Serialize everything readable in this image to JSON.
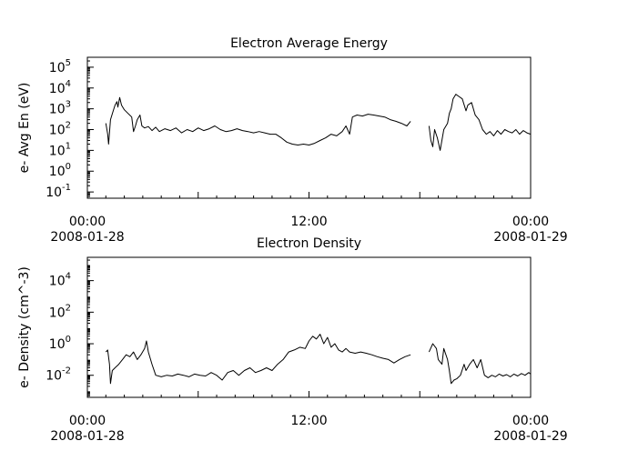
{
  "chart_data": [
    {
      "type": "line",
      "title": "Electron Average Energy",
      "ylabel": "e- Avg En (eV)",
      "yscale": "log",
      "ylim": [
        0.05,
        300000
      ],
      "y_ticks": [
        {
          "value": 0.1,
          "base": "10",
          "exp": "-1"
        },
        {
          "value": 1,
          "base": "10",
          "exp": "0"
        },
        {
          "value": 10,
          "base": "10",
          "exp": "1"
        },
        {
          "value": 100,
          "base": "10",
          "exp": "2"
        },
        {
          "value": 1000,
          "base": "10",
          "exp": "3"
        },
        {
          "value": 10000,
          "base": "10",
          "exp": "4"
        },
        {
          "value": 100000,
          "base": "10",
          "exp": "5"
        }
      ],
      "x_ticks": [
        {
          "hour": 0,
          "time": "00:00",
          "date": "2008-01-28"
        },
        {
          "hour": 12,
          "time": "12:00",
          "date": ""
        },
        {
          "hour": 24,
          "time": "00:00",
          "date": "2008-01-29"
        }
      ],
      "xlim_hours": [
        0,
        24
      ],
      "grid": false,
      "series": [
        {
          "segments": [
            [
              [
                1.0,
                200
              ],
              [
                1.1,
                60
              ],
              [
                1.15,
                20
              ],
              [
                1.25,
                300
              ],
              [
                1.4,
                800
              ],
              [
                1.5,
                1500
              ],
              [
                1.6,
                2200
              ],
              [
                1.65,
                1200
              ],
              [
                1.75,
                3500
              ],
              [
                1.85,
                1500
              ],
              [
                2.0,
                900
              ],
              [
                2.2,
                600
              ],
              [
                2.4,
                400
              ],
              [
                2.5,
                80
              ],
              [
                2.6,
                150
              ],
              [
                2.7,
                300
              ],
              [
                2.85,
                500
              ],
              [
                2.95,
                150
              ],
              [
                3.1,
                120
              ],
              [
                3.3,
                140
              ],
              [
                3.5,
                90
              ],
              [
                3.7,
                130
              ],
              [
                3.9,
                80
              ],
              [
                4.2,
                110
              ],
              [
                4.5,
                90
              ],
              [
                4.8,
                120
              ],
              [
                5.1,
                70
              ],
              [
                5.4,
                100
              ],
              [
                5.7,
                80
              ],
              [
                6.0,
                120
              ],
              [
                6.3,
                90
              ],
              [
                6.6,
                110
              ],
              [
                6.9,
                150
              ],
              [
                7.2,
                100
              ],
              [
                7.5,
                80
              ],
              [
                7.8,
                90
              ],
              [
                8.1,
                110
              ],
              [
                8.4,
                90
              ],
              [
                8.7,
                80
              ],
              [
                9.0,
                70
              ],
              [
                9.3,
                80
              ],
              [
                9.6,
                70
              ],
              [
                9.9,
                60
              ],
              [
                10.2,
                60
              ],
              [
                10.5,
                40
              ],
              [
                10.8,
                25
              ],
              [
                11.1,
                20
              ],
              [
                11.4,
                18
              ],
              [
                11.7,
                20
              ],
              [
                12.0,
                18
              ],
              [
                12.3,
                22
              ],
              [
                12.6,
                30
              ],
              [
                12.9,
                40
              ],
              [
                13.2,
                60
              ],
              [
                13.5,
                50
              ],
              [
                13.8,
                80
              ],
              [
                14.0,
                150
              ],
              [
                14.2,
                60
              ],
              [
                14.35,
                400
              ],
              [
                14.6,
                500
              ],
              [
                14.9,
                450
              ],
              [
                15.2,
                550
              ],
              [
                15.5,
                500
              ],
              [
                15.8,
                450
              ],
              [
                16.1,
                400
              ],
              [
                16.4,
                300
              ],
              [
                16.7,
                250
              ],
              [
                17.0,
                200
              ],
              [
                17.3,
                150
              ],
              [
                17.5,
                250
              ]
            ],
            [
              [
                18.5,
                150
              ],
              [
                18.6,
                30
              ],
              [
                18.7,
                15
              ],
              [
                18.8,
                100
              ],
              [
                18.95,
                40
              ],
              [
                19.1,
                10
              ],
              [
                19.3,
                100
              ],
              [
                19.5,
                200
              ],
              [
                19.6,
                600
              ],
              [
                19.7,
                1000
              ],
              [
                19.8,
                3000
              ],
              [
                19.95,
                5000
              ],
              [
                20.1,
                4000
              ],
              [
                20.3,
                3000
              ],
              [
                20.5,
                800
              ],
              [
                20.6,
                1500
              ],
              [
                20.8,
                2000
              ],
              [
                21.0,
                500
              ],
              [
                21.2,
                300
              ],
              [
                21.4,
                100
              ],
              [
                21.6,
                60
              ],
              [
                21.8,
                80
              ],
              [
                22.0,
                50
              ],
              [
                22.2,
                90
              ],
              [
                22.4,
                60
              ],
              [
                22.6,
                100
              ],
              [
                22.8,
                80
              ],
              [
                23.0,
                70
              ],
              [
                23.2,
                100
              ],
              [
                23.4,
                60
              ],
              [
                23.6,
                90
              ],
              [
                23.8,
                70
              ],
              [
                24.0,
                60
              ]
            ]
          ]
        }
      ]
    },
    {
      "type": "line",
      "title": "Electron Density",
      "ylabel": "e- Density (cm^-3)",
      "yscale": "log",
      "ylim": [
        0.0004,
        300000
      ],
      "y_ticks": [
        {
          "value": 0.01,
          "base": "10",
          "exp": "-2"
        },
        {
          "value": 1,
          "base": "10",
          "exp": "0"
        },
        {
          "value": 100,
          "base": "10",
          "exp": "2"
        },
        {
          "value": 10000,
          "base": "10",
          "exp": "4"
        }
      ],
      "x_ticks": [
        {
          "hour": 0,
          "time": "00:00",
          "date": "2008-01-28"
        },
        {
          "hour": 12,
          "time": "12:00",
          "date": ""
        },
        {
          "hour": 24,
          "time": "00:00",
          "date": "2008-01-29"
        }
      ],
      "xlim_hours": [
        0,
        24
      ],
      "grid": false,
      "series": [
        {
          "segments": [
            [
              [
                1.0,
                0.3
              ],
              [
                1.1,
                0.4
              ],
              [
                1.2,
                0.05
              ],
              [
                1.25,
                0.003
              ],
              [
                1.35,
                0.02
              ],
              [
                1.5,
                0.03
              ],
              [
                1.7,
                0.05
              ],
              [
                1.9,
                0.1
              ],
              [
                2.1,
                0.2
              ],
              [
                2.3,
                0.15
              ],
              [
                2.5,
                0.3
              ],
              [
                2.7,
                0.1
              ],
              [
                2.9,
                0.2
              ],
              [
                3.1,
                0.5
              ],
              [
                3.2,
                1.5
              ],
              [
                3.3,
                0.3
              ],
              [
                3.5,
                0.05
              ],
              [
                3.7,
                0.01
              ],
              [
                4.0,
                0.008
              ],
              [
                4.3,
                0.01
              ],
              [
                4.6,
                0.009
              ],
              [
                4.9,
                0.012
              ],
              [
                5.2,
                0.01
              ],
              [
                5.5,
                0.008
              ],
              [
                5.8,
                0.012
              ],
              [
                6.1,
                0.01
              ],
              [
                6.4,
                0.009
              ],
              [
                6.7,
                0.015
              ],
              [
                7.0,
                0.01
              ],
              [
                7.3,
                0.005
              ],
              [
                7.6,
                0.015
              ],
              [
                7.9,
                0.02
              ],
              [
                8.2,
                0.01
              ],
              [
                8.5,
                0.02
              ],
              [
                8.8,
                0.03
              ],
              [
                9.1,
                0.015
              ],
              [
                9.4,
                0.02
              ],
              [
                9.7,
                0.03
              ],
              [
                10.0,
                0.02
              ],
              [
                10.3,
                0.05
              ],
              [
                10.6,
                0.1
              ],
              [
                10.9,
                0.3
              ],
              [
                11.2,
                0.4
              ],
              [
                11.5,
                0.6
              ],
              [
                11.8,
                0.5
              ],
              [
                12.0,
                1.5
              ],
              [
                12.2,
                3
              ],
              [
                12.4,
                2
              ],
              [
                12.6,
                4
              ],
              [
                12.8,
                1
              ],
              [
                13.0,
                2.5
              ],
              [
                13.2,
                0.6
              ],
              [
                13.4,
                1
              ],
              [
                13.6,
                0.4
              ],
              [
                13.8,
                0.3
              ],
              [
                14.0,
                0.5
              ],
              [
                14.2,
                0.3
              ],
              [
                14.5,
                0.25
              ],
              [
                14.8,
                0.3
              ],
              [
                15.1,
                0.25
              ],
              [
                15.4,
                0.2
              ],
              [
                15.7,
                0.15
              ],
              [
                16.0,
                0.12
              ],
              [
                16.3,
                0.1
              ],
              [
                16.6,
                0.06
              ],
              [
                16.9,
                0.1
              ],
              [
                17.2,
                0.15
              ],
              [
                17.5,
                0.2
              ]
            ],
            [
              [
                18.5,
                0.3
              ],
              [
                18.7,
                1
              ],
              [
                18.9,
                0.5
              ],
              [
                19.0,
                0.1
              ],
              [
                19.2,
                0.05
              ],
              [
                19.3,
                0.5
              ],
              [
                19.5,
                0.1
              ],
              [
                19.6,
                0.02
              ],
              [
                19.7,
                0.003
              ],
              [
                19.85,
                0.005
              ],
              [
                20.0,
                0.006
              ],
              [
                20.2,
                0.01
              ],
              [
                20.4,
                0.05
              ],
              [
                20.5,
                0.02
              ],
              [
                20.7,
                0.05
              ],
              [
                20.9,
                0.1
              ],
              [
                21.1,
                0.03
              ],
              [
                21.3,
                0.1
              ],
              [
                21.5,
                0.01
              ],
              [
                21.7,
                0.007
              ],
              [
                21.9,
                0.01
              ],
              [
                22.1,
                0.008
              ],
              [
                22.3,
                0.012
              ],
              [
                22.5,
                0.009
              ],
              [
                22.7,
                0.011
              ],
              [
                22.9,
                0.008
              ],
              [
                23.1,
                0.012
              ],
              [
                23.3,
                0.009
              ],
              [
                23.5,
                0.013
              ],
              [
                23.7,
                0.01
              ],
              [
                23.9,
                0.015
              ],
              [
                24.0,
                0.012
              ]
            ]
          ]
        }
      ]
    }
  ]
}
